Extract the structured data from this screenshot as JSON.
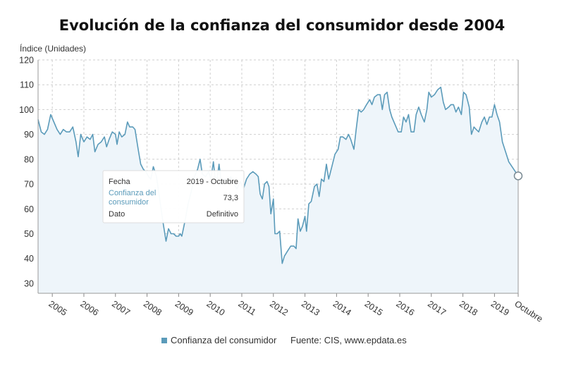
{
  "chart_data": {
    "type": "area",
    "title": "Evolución de la confianza del consumidor desde 2004",
    "ylabel": "Índice (Unidades)",
    "ylim": [
      26,
      120
    ],
    "yticks": [
      30,
      40,
      50,
      60,
      70,
      80,
      90,
      100,
      110,
      120
    ],
    "x_tick_labels": [
      "2005",
      "2006",
      "2007",
      "2008",
      "2009",
      "2010",
      "2011",
      "2012",
      "2013",
      "2014",
      "2015",
      "2016",
      "2017",
      "2018",
      "2019",
      "Octubre"
    ],
    "x_tick_positions": [
      2005,
      2006,
      2007,
      2008,
      2009,
      2010,
      2011,
      2012,
      2013,
      2014,
      2015,
      2016,
      2017,
      2018,
      2019,
      2019.75
    ],
    "xlim": [
      2004.55,
      2019.75
    ],
    "grid": true,
    "legend_position": "bottom",
    "series": [
      {
        "name": "Confianza del consumidor",
        "color": "#5b9bba",
        "points": [
          [
            2004.55,
            96
          ],
          [
            2004.65,
            91
          ],
          [
            2004.75,
            90
          ],
          [
            2004.85,
            92
          ],
          [
            2004.95,
            98
          ],
          [
            2005.05,
            95
          ],
          [
            2005.15,
            92
          ],
          [
            2005.25,
            90
          ],
          [
            2005.35,
            92
          ],
          [
            2005.45,
            91
          ],
          [
            2005.55,
            91
          ],
          [
            2005.65,
            93
          ],
          [
            2005.75,
            87
          ],
          [
            2005.82,
            81
          ],
          [
            2005.9,
            90
          ],
          [
            2006.0,
            87
          ],
          [
            2006.1,
            89
          ],
          [
            2006.2,
            88
          ],
          [
            2006.28,
            90
          ],
          [
            2006.35,
            83
          ],
          [
            2006.45,
            86
          ],
          [
            2006.55,
            87
          ],
          [
            2006.65,
            89
          ],
          [
            2006.72,
            85
          ],
          [
            2006.8,
            88
          ],
          [
            2006.9,
            91
          ],
          [
            2007.0,
            90
          ],
          [
            2007.05,
            86
          ],
          [
            2007.12,
            91
          ],
          [
            2007.2,
            89
          ],
          [
            2007.3,
            90
          ],
          [
            2007.38,
            95
          ],
          [
            2007.45,
            93
          ],
          [
            2007.55,
            93
          ],
          [
            2007.62,
            92
          ],
          [
            2007.72,
            84
          ],
          [
            2007.8,
            78
          ],
          [
            2007.88,
            76
          ],
          [
            2007.96,
            75
          ],
          [
            2008.05,
            73
          ],
          [
            2008.12,
            72
          ],
          [
            2008.2,
            77
          ],
          [
            2008.3,
            73
          ],
          [
            2008.4,
            64
          ],
          [
            2008.5,
            55
          ],
          [
            2008.6,
            47
          ],
          [
            2008.68,
            52
          ],
          [
            2008.76,
            50
          ],
          [
            2008.84,
            50
          ],
          [
            2008.92,
            49
          ],
          [
            2009.0,
            49
          ],
          [
            2009.05,
            50
          ],
          [
            2009.1,
            49
          ],
          [
            2009.2,
            55
          ],
          [
            2009.3,
            62
          ],
          [
            2009.4,
            67
          ],
          [
            2009.5,
            73
          ],
          [
            2009.6,
            76
          ],
          [
            2009.68,
            80
          ],
          [
            2009.75,
            74
          ],
          [
            2009.85,
            73
          ],
          [
            2009.95,
            75
          ],
          [
            2010.02,
            72
          ],
          [
            2010.1,
            79
          ],
          [
            2010.15,
            73
          ],
          [
            2010.22,
            72
          ],
          [
            2010.28,
            78
          ],
          [
            2010.35,
            70
          ],
          [
            2010.45,
            72
          ],
          [
            2010.55,
            71
          ],
          [
            2010.65,
            73
          ],
          [
            2010.75,
            70
          ],
          [
            2010.85,
            68
          ],
          [
            2010.95,
            71
          ],
          [
            2011.05,
            68
          ],
          [
            2011.15,
            72
          ],
          [
            2011.25,
            74
          ],
          [
            2011.35,
            75
          ],
          [
            2011.45,
            74
          ],
          [
            2011.52,
            73
          ],
          [
            2011.58,
            66
          ],
          [
            2011.65,
            64
          ],
          [
            2011.72,
            70
          ],
          [
            2011.8,
            71
          ],
          [
            2011.86,
            69
          ],
          [
            2011.92,
            58
          ],
          [
            2012.0,
            64
          ],
          [
            2012.05,
            50
          ],
          [
            2012.12,
            50
          ],
          [
            2012.2,
            51
          ],
          [
            2012.28,
            38
          ],
          [
            2012.35,
            41
          ],
          [
            2012.45,
            43
          ],
          [
            2012.55,
            45
          ],
          [
            2012.65,
            45
          ],
          [
            2012.72,
            44
          ],
          [
            2012.78,
            56
          ],
          [
            2012.85,
            51
          ],
          [
            2012.92,
            53
          ],
          [
            2013.0,
            57
          ],
          [
            2013.05,
            51
          ],
          [
            2013.12,
            62
          ],
          [
            2013.2,
            63
          ],
          [
            2013.3,
            69
          ],
          [
            2013.38,
            70
          ],
          [
            2013.45,
            65
          ],
          [
            2013.52,
            72
          ],
          [
            2013.6,
            71
          ],
          [
            2013.68,
            78
          ],
          [
            2013.75,
            72
          ],
          [
            2013.85,
            77
          ],
          [
            2013.95,
            82
          ],
          [
            2014.05,
            84
          ],
          [
            2014.12,
            89
          ],
          [
            2014.2,
            89
          ],
          [
            2014.3,
            88
          ],
          [
            2014.38,
            90
          ],
          [
            2014.45,
            88
          ],
          [
            2014.55,
            84
          ],
          [
            2014.62,
            92
          ],
          [
            2014.7,
            100
          ],
          [
            2014.78,
            99
          ],
          [
            2014.86,
            100
          ],
          [
            2014.95,
            102
          ],
          [
            2015.05,
            104
          ],
          [
            2015.12,
            102
          ],
          [
            2015.2,
            105
          ],
          [
            2015.3,
            106
          ],
          [
            2015.38,
            106
          ],
          [
            2015.45,
            100
          ],
          [
            2015.52,
            106
          ],
          [
            2015.6,
            107
          ],
          [
            2015.68,
            100
          ],
          [
            2015.75,
            97
          ],
          [
            2015.85,
            94
          ],
          [
            2015.95,
            91
          ],
          [
            2016.05,
            91
          ],
          [
            2016.12,
            97
          ],
          [
            2016.2,
            95
          ],
          [
            2016.28,
            98
          ],
          [
            2016.36,
            91
          ],
          [
            2016.45,
            91
          ],
          [
            2016.52,
            98
          ],
          [
            2016.6,
            101
          ],
          [
            2016.68,
            98
          ],
          [
            2016.78,
            95
          ],
          [
            2016.86,
            100
          ],
          [
            2016.92,
            107
          ],
          [
            2017.0,
            105
          ],
          [
            2017.1,
            106
          ],
          [
            2017.2,
            108
          ],
          [
            2017.3,
            109
          ],
          [
            2017.38,
            103
          ],
          [
            2017.45,
            100
          ],
          [
            2017.55,
            101
          ],
          [
            2017.62,
            102
          ],
          [
            2017.7,
            102
          ],
          [
            2017.78,
            99
          ],
          [
            2017.86,
            101
          ],
          [
            2017.95,
            98
          ],
          [
            2018.02,
            107
          ],
          [
            2018.1,
            106
          ],
          [
            2018.2,
            101
          ],
          [
            2018.27,
            90
          ],
          [
            2018.35,
            93
          ],
          [
            2018.42,
            92
          ],
          [
            2018.5,
            91
          ],
          [
            2018.6,
            95
          ],
          [
            2018.68,
            97
          ],
          [
            2018.76,
            94
          ],
          [
            2018.84,
            97
          ],
          [
            2018.92,
            97
          ],
          [
            2019.0,
            102
          ],
          [
            2019.08,
            98
          ],
          [
            2019.16,
            95
          ],
          [
            2019.25,
            87
          ],
          [
            2019.35,
            83
          ],
          [
            2019.45,
            79
          ],
          [
            2019.75,
            73.3
          ]
        ]
      }
    ],
    "highlight_point": [
      2019.75,
      73.3
    ],
    "tooltip": {
      "fecha_label": "Fecha",
      "fecha_value": "2019 - Octubre",
      "series_label_line1": "Confianza del",
      "series_label_line2": "consumidor",
      "series_value": "73,3",
      "dato_label": "Dato",
      "dato_value": "Definitivo"
    },
    "legend_label": "Confianza del consumidor",
    "source": "Fuente: CIS, www.epdata.es"
  }
}
